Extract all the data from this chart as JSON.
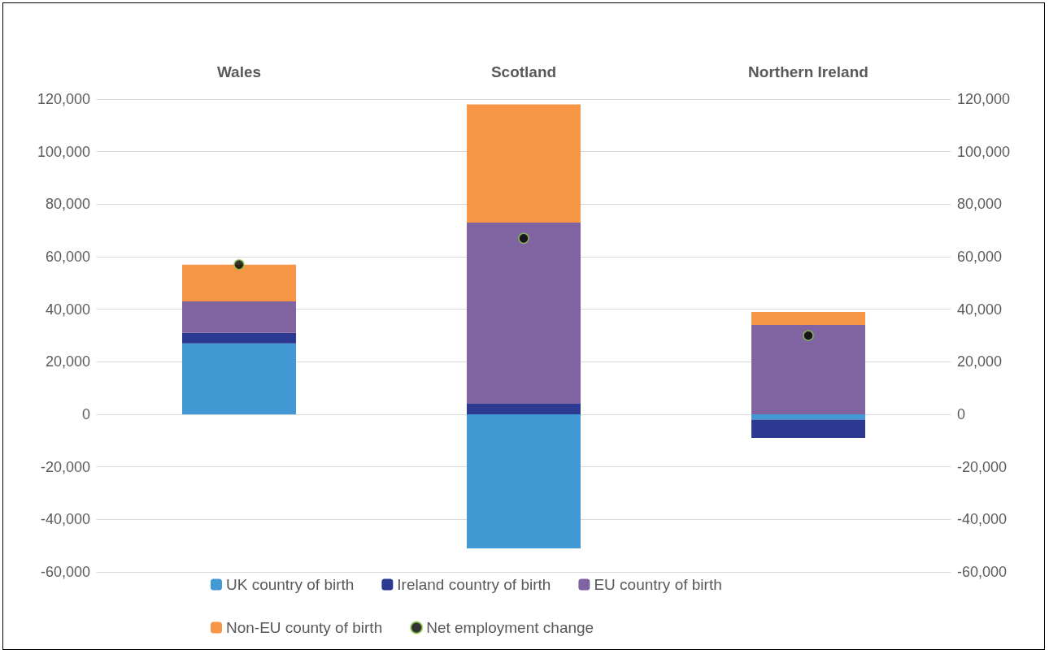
{
  "chart_data": {
    "type": "bar",
    "stacked": true,
    "categories": [
      "Wales",
      "Scotland",
      "Northern Ireland"
    ],
    "series": [
      {
        "name": "UK country of birth",
        "color": "#4299d4",
        "values": [
          27000,
          -51000,
          -2000
        ]
      },
      {
        "name": "Ireland country of birth",
        "color": "#2b3990",
        "values": [
          4000,
          4000,
          -7000
        ]
      },
      {
        "name": "EU country of birth",
        "color": "#8064a2",
        "values": [
          12000,
          69000,
          34000
        ]
      },
      {
        "name": "Non-EU county of birth",
        "color": "#f79646",
        "values": [
          14000,
          45000,
          5000
        ]
      },
      {
        "name": "Net employment change",
        "type": "scatter",
        "marker": "circle",
        "color": "#000000",
        "values": [
          57000,
          67000,
          30000
        ]
      }
    ],
    "ylim": [
      -60000,
      120000
    ],
    "yticks": [
      {
        "value": -60000,
        "label": "-60,000"
      },
      {
        "value": -40000,
        "label": "-40,000"
      },
      {
        "value": -20000,
        "label": "-20,000"
      },
      {
        "value": 0,
        "label": "0"
      },
      {
        "value": 20000,
        "label": "20,000"
      },
      {
        "value": 40000,
        "label": "40,000"
      },
      {
        "value": 60000,
        "label": "60,000"
      },
      {
        "value": 80000,
        "label": "80,000"
      },
      {
        "value": 100000,
        "label": "100,000"
      },
      {
        "value": 120000,
        "label": "120,000"
      }
    ],
    "y2lim": [
      -60000,
      120000
    ],
    "y2ticks": [
      {
        "value": -60000,
        "label": "-60,000"
      },
      {
        "value": -40000,
        "label": "-40,000"
      },
      {
        "value": -20000,
        "label": "-20,000"
      },
      {
        "value": 0,
        "label": "0"
      },
      {
        "value": 20000,
        "label": "20,000"
      },
      {
        "value": 40000,
        "label": "40,000"
      },
      {
        "value": 60000,
        "label": "60,000"
      },
      {
        "value": 80000,
        "label": "80,000"
      },
      {
        "value": 100000,
        "label": "100,000"
      },
      {
        "value": 120000,
        "label": "120,000"
      }
    ],
    "grid": "y",
    "legend": "bottom"
  }
}
